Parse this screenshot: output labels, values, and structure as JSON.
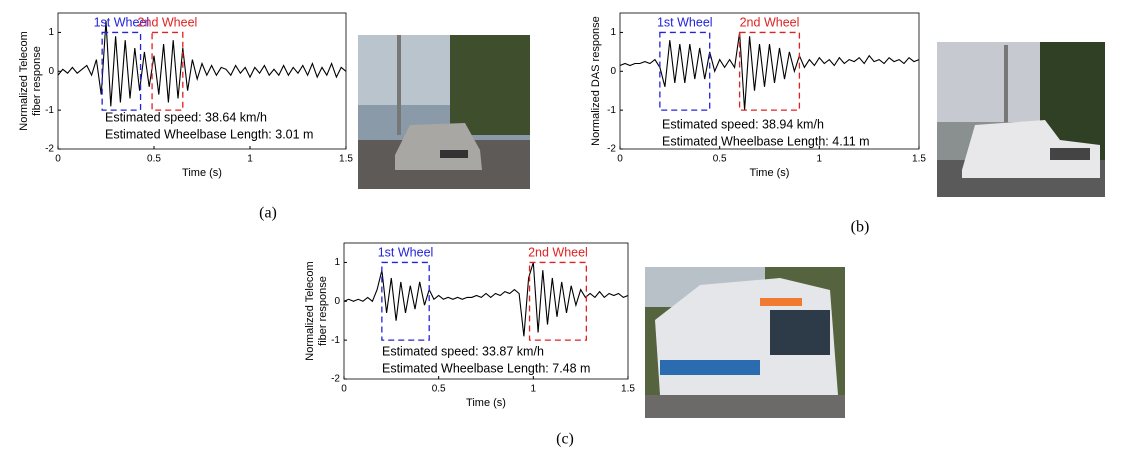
{
  "chart_data": [
    {
      "type": "line",
      "caption": "(a)",
      "xlabel": "Time (s)",
      "ylabel": [
        "Normalized Telecom",
        "fiber response"
      ],
      "xlim": [
        0,
        1.5
      ],
      "ylim": [
        -2,
        1.5
      ],
      "xticks": [
        0,
        0.5,
        1,
        1.5
      ],
      "yticks": [
        -2,
        -1,
        0,
        1
      ],
      "color": "#000000",
      "x": [
        0,
        0.025,
        0.05,
        0.075,
        0.1,
        0.125,
        0.15,
        0.175,
        0.2,
        0.225,
        0.25,
        0.275,
        0.3,
        0.325,
        0.35,
        0.375,
        0.4,
        0.425,
        0.45,
        0.475,
        0.5,
        0.525,
        0.55,
        0.575,
        0.6,
        0.625,
        0.65,
        0.675,
        0.7,
        0.725,
        0.75,
        0.775,
        0.8,
        0.825,
        0.85,
        0.875,
        0.9,
        0.925,
        0.95,
        0.975,
        1,
        1.025,
        1.05,
        1.075,
        1.1,
        1.125,
        1.15,
        1.175,
        1.2,
        1.225,
        1.25,
        1.275,
        1.3,
        1.325,
        1.35,
        1.375,
        1.4,
        1.425,
        1.45,
        1.475,
        1.5
      ],
      "values": [
        -0.1,
        0.05,
        -0.05,
        0.1,
        -0.05,
        0.05,
        0.15,
        -0.1,
        0.3,
        -0.6,
        1.3,
        -0.9,
        0.9,
        -0.8,
        0.8,
        -0.7,
        0.6,
        -0.5,
        0.5,
        -0.4,
        0.4,
        -0.6,
        0.7,
        -0.8,
        0.8,
        -0.7,
        0.6,
        -0.5,
        0.3,
        -0.2,
        0.2,
        -0.1,
        0.15,
        -0.1,
        0.1,
        0.05,
        -0.1,
        0.15,
        -0.05,
        0.1,
        -0.15,
        0.1,
        -0.05,
        0.15,
        -0.1,
        0.05,
        -0.1,
        0.15,
        -0.1,
        0.1,
        -0.05,
        0.15,
        -0.1,
        0.2,
        -0.15,
        0.1,
        -0.1,
        0.2,
        -0.15,
        0.1,
        0.0
      ],
      "boxes": [
        {
          "label": "1st Wheel",
          "color": "#2323dc",
          "x": [
            0.23,
            0.43
          ],
          "y": [
            -1,
            1
          ]
        },
        {
          "label": "2nd Wheel",
          "color": "#e02222",
          "x": [
            0.49,
            0.65
          ],
          "y": [
            -1,
            1
          ]
        }
      ],
      "annotations": [
        "Estimated speed: 38.64 km/h",
        "Estimated Wheelbase Length: 3.01 m"
      ]
    },
    {
      "type": "line",
      "caption": "(b)",
      "xlabel": "Time (s)",
      "ylabel": [
        "Normalized DAS response"
      ],
      "xlim": [
        0,
        1.5
      ],
      "ylim": [
        -2,
        1.5
      ],
      "xticks": [
        0,
        0.5,
        1,
        1.5
      ],
      "yticks": [
        -2,
        -1,
        0,
        1
      ],
      "color": "#000000",
      "x": [
        0,
        0.025,
        0.05,
        0.075,
        0.1,
        0.125,
        0.15,
        0.175,
        0.2,
        0.225,
        0.25,
        0.275,
        0.3,
        0.325,
        0.35,
        0.375,
        0.4,
        0.425,
        0.45,
        0.475,
        0.5,
        0.525,
        0.55,
        0.575,
        0.6,
        0.625,
        0.65,
        0.675,
        0.7,
        0.725,
        0.75,
        0.775,
        0.8,
        0.825,
        0.85,
        0.875,
        0.9,
        0.925,
        0.95,
        0.975,
        1,
        1.025,
        1.05,
        1.075,
        1.1,
        1.125,
        1.15,
        1.175,
        1.2,
        1.225,
        1.25,
        1.275,
        1.3,
        1.325,
        1.35,
        1.375,
        1.4,
        1.425,
        1.45,
        1.475,
        1.5
      ],
      "values": [
        0.15,
        0.2,
        0.15,
        0.2,
        0.2,
        0.25,
        0.2,
        0.3,
        0.1,
        -0.4,
        0.8,
        -0.3,
        0.7,
        -0.3,
        0.7,
        -0.2,
        0.6,
        -0.2,
        0.5,
        0.0,
        0.3,
        0.1,
        0.3,
        0.1,
        1.0,
        -1.0,
        0.9,
        -0.5,
        0.7,
        -0.4,
        0.7,
        -0.3,
        0.6,
        -0.2,
        0.5,
        0.0,
        0.4,
        0.1,
        0.3,
        0.15,
        0.35,
        0.2,
        0.3,
        0.15,
        0.35,
        0.2,
        0.3,
        0.25,
        0.35,
        0.2,
        0.4,
        0.25,
        0.3,
        0.2,
        0.35,
        0.25,
        0.3,
        0.2,
        0.35,
        0.25,
        0.3
      ],
      "boxes": [
        {
          "label": "1st Wheel",
          "color": "#2323dc",
          "x": [
            0.2,
            0.45
          ],
          "y": [
            -1,
            1
          ]
        },
        {
          "label": "2nd Wheel",
          "color": "#e02222",
          "x": [
            0.6,
            0.9
          ],
          "y": [
            -1,
            1
          ]
        }
      ],
      "annotations": [
        "Estimated speed: 38.94 km/h",
        "Estimated Wheelbase Length: 4.11 m"
      ]
    },
    {
      "type": "line",
      "caption": "(c)",
      "xlabel": "Time (s)",
      "ylabel": [
        "Normalized Telecom",
        "fiber response"
      ],
      "xlim": [
        0,
        1.5
      ],
      "ylim": [
        -2,
        1.5
      ],
      "xticks": [
        0,
        0.5,
        1,
        1.5
      ],
      "yticks": [
        -2,
        -1,
        0,
        1
      ],
      "color": "#000000",
      "x": [
        0,
        0.025,
        0.05,
        0.075,
        0.1,
        0.125,
        0.15,
        0.175,
        0.2,
        0.225,
        0.25,
        0.275,
        0.3,
        0.325,
        0.35,
        0.375,
        0.4,
        0.425,
        0.45,
        0.475,
        0.5,
        0.525,
        0.55,
        0.575,
        0.6,
        0.625,
        0.65,
        0.675,
        0.7,
        0.725,
        0.75,
        0.775,
        0.8,
        0.825,
        0.85,
        0.875,
        0.9,
        0.925,
        0.95,
        0.975,
        1,
        1.025,
        1.05,
        1.075,
        1.1,
        1.125,
        1.15,
        1.175,
        1.2,
        1.225,
        1.25,
        1.275,
        1.3,
        1.325,
        1.35,
        1.375,
        1.4,
        1.425,
        1.45,
        1.475,
        1.5
      ],
      "values": [
        0.0,
        0.05,
        0.0,
        0.05,
        0.0,
        0.1,
        0.0,
        0.3,
        0.8,
        -0.3,
        0.6,
        -0.5,
        0.5,
        -0.3,
        0.4,
        -0.2,
        0.5,
        -0.1,
        0.3,
        0.05,
        0.15,
        0.05,
        0.1,
        0.05,
        0.1,
        0.05,
        0.1,
        0.1,
        0.15,
        0.1,
        0.2,
        0.1,
        0.2,
        0.15,
        0.25,
        0.2,
        0.3,
        0.2,
        -0.9,
        0.6,
        1.0,
        -0.8,
        0.8,
        -0.6,
        0.6,
        -0.4,
        0.5,
        -0.3,
        0.4,
        -0.1,
        0.3,
        0.1,
        0.2,
        0.1,
        0.25,
        0.1,
        0.2,
        0.15,
        0.2,
        0.1,
        0.15
      ],
      "boxes": [
        {
          "label": "1st Wheel",
          "color": "#2323dc",
          "x": [
            0.2,
            0.45
          ],
          "y": [
            -1,
            1
          ]
        },
        {
          "label": "2nd Wheel",
          "color": "#e02222",
          "x": [
            0.98,
            1.28
          ],
          "y": [
            -1,
            1
          ]
        }
      ],
      "annotations": [
        "Estimated speed: 33.87 km/h",
        "Estimated Wheelbase Length: 7.48 m"
      ]
    }
  ]
}
